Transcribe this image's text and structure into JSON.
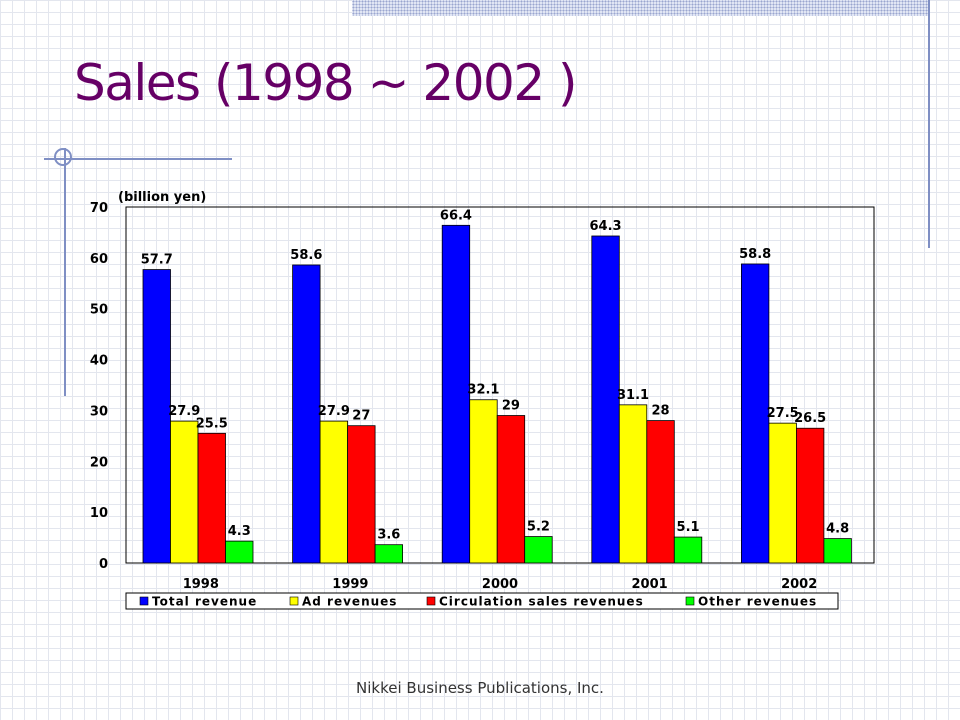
{
  "slide": {
    "title": "Sales (1998 ~ 2002 )",
    "footer": "Nikkei Business Publications, Inc."
  },
  "chart_data": {
    "type": "bar",
    "unit_label": "(billion yen)",
    "categories": [
      "1998",
      "1999",
      "2000",
      "2001",
      "2002"
    ],
    "series": [
      {
        "name": "Total revenue",
        "color": "#0000ff",
        "values": [
          57.7,
          58.6,
          66.4,
          64.3,
          58.8
        ]
      },
      {
        "name": "Ad revenues",
        "color": "#ffff00",
        "values": [
          27.9,
          27.9,
          32.1,
          31.1,
          27.5
        ]
      },
      {
        "name": "Circulation sales revenues",
        "color": "#ff0000",
        "values": [
          25.5,
          27,
          29,
          28,
          26.5
        ]
      },
      {
        "name": "Other revenues",
        "color": "#00ff00",
        "values": [
          4.3,
          3.6,
          5.2,
          5.1,
          4.8
        ]
      }
    ],
    "ylim": [
      0,
      70
    ],
    "yticks": [
      0,
      10,
      20,
      30,
      40,
      50,
      60,
      70
    ],
    "grid": false,
    "legend_position": "bottom"
  }
}
